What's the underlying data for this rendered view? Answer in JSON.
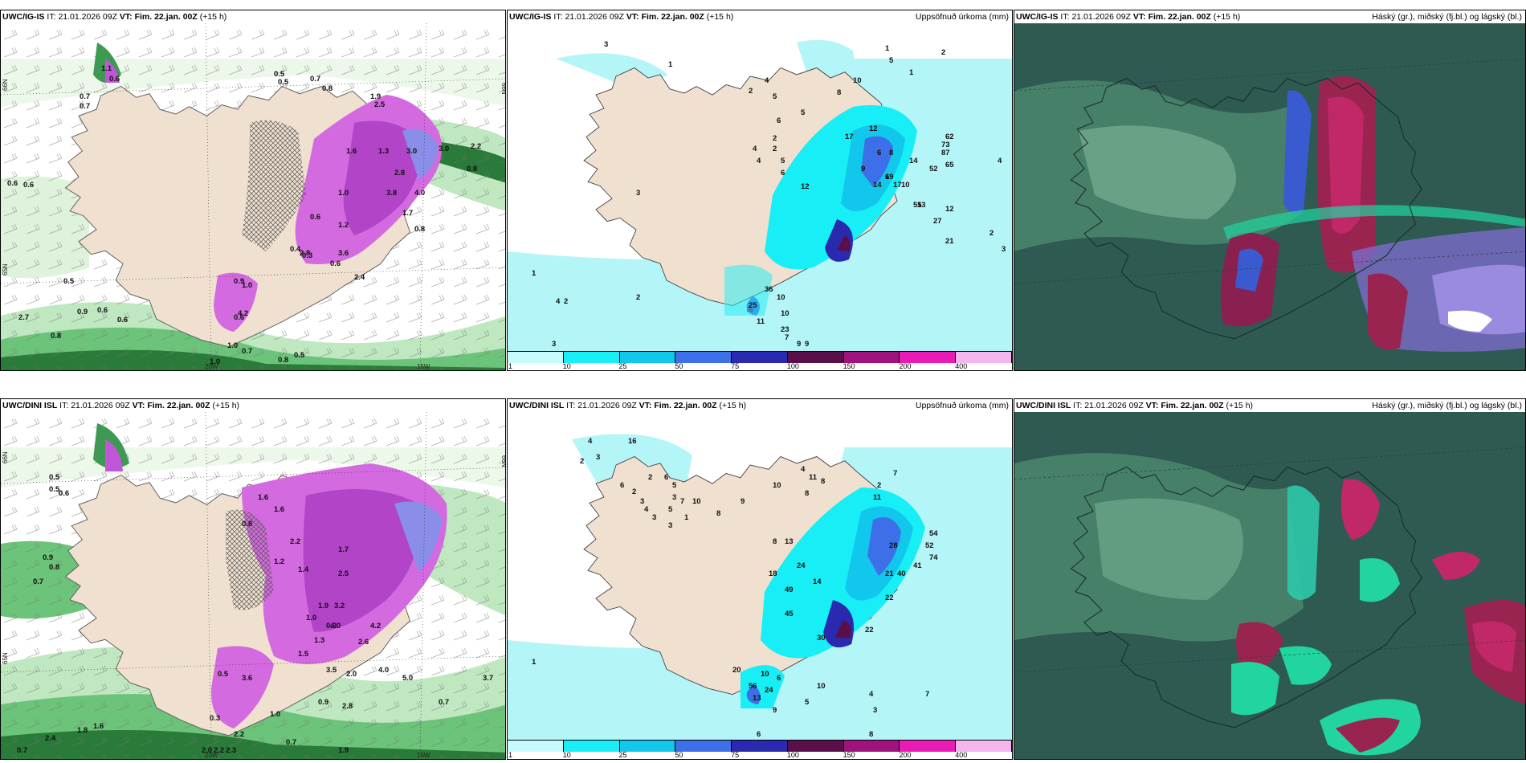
{
  "colors": {
    "land": "#efe0cf",
    "sea_light": "#b4f5f8",
    "precip_cyan": "#00e8f0",
    "precip_blue": "#3f6ef0",
    "precip_purple": "#7a1060",
    "snow_magenta": "#d46ae0",
    "green_light": "#bfe8c0",
    "green_dark": "#2a7a3a",
    "cloud_bg": "#2e5a52"
  },
  "rows": [
    {
      "model": "UWC/IG-IS",
      "init_prefix": "IT:",
      "init_time": "21.01.2026 09Z",
      "valid_prefix": "VT:",
      "valid_time": "Fim. 22.jan. 00Z",
      "lead": "(+15 h)",
      "left_panel": {
        "axis_labels": [
          "66N",
          "65N",
          "20W",
          "15W",
          "19W"
        ],
        "values": [
          "0.7",
          "0.7",
          "0.5",
          "0.6",
          "0.8",
          "0.6",
          "0.6",
          "1.1",
          "0.6",
          "1.9",
          "2.5",
          "1.6",
          "1.3",
          "3.0",
          "2.8",
          "3.8",
          "1.0",
          "0.6",
          "1.2",
          "0.4",
          "0.3",
          "0.9",
          "1.0",
          "0.5",
          "2.7",
          "3.6",
          "2.8",
          "0.6",
          "4.2",
          "0.5",
          "0.7",
          "0.8",
          "1.0",
          "0.7",
          "0.8",
          "0.5",
          "2.4",
          "1.0",
          "0.6",
          "0.9",
          "3.0",
          "0.8",
          "2.2",
          "4.0",
          "1.7",
          "0.8",
          "0.6"
        ]
      },
      "middle_panel": {
        "title": "Uppsöfnuð úrkoma (mm)",
        "values": [
          "3",
          "1",
          "2",
          "4",
          "5",
          "6",
          "2",
          "4",
          "5",
          "3",
          "6",
          "4",
          "2",
          "12",
          "5",
          "10",
          "8",
          "17",
          "12",
          "6",
          "14",
          "9",
          "6",
          "8",
          "10",
          "14",
          "19",
          "17",
          "55",
          "27",
          "13",
          "52",
          "65",
          "87",
          "73",
          "62",
          "21",
          "4",
          "2",
          "3",
          "36",
          "10",
          "25",
          "11",
          "10",
          "23",
          "7",
          "1",
          "4",
          "2",
          "2",
          "3",
          "9",
          "9",
          "12",
          "1",
          "5",
          "1",
          "2"
        ],
        "colorbar": {
          "ticks": [
            "1",
            "10",
            "25",
            "50",
            "75",
            "100",
            "150",
            "200",
            "400"
          ],
          "colors": [
            "#c6fbfd",
            "#17eef5",
            "#12c7ec",
            "#3c6fe8",
            "#2a2ab0",
            "#5a0f4a",
            "#a0127e",
            "#ea1ab5",
            "#f5b6ef"
          ]
        }
      },
      "right_panel": {
        "title": "Háský (gr.), miðský (fj.bl.) og lágský (bl.)"
      }
    },
    {
      "model": "UWC/DINI ISL",
      "init_prefix": "IT:",
      "init_time": "21.01.2026 09Z",
      "valid_prefix": "VT:",
      "valid_time": "Fim. 22.jan. 00Z",
      "lead": "(+15 h)",
      "left_panel": {
        "axis_labels": [
          "66N",
          "65N",
          "20W",
          "15W",
          "19W"
        ],
        "values": [
          "0.5",
          "0.6",
          "0.5",
          "0.9",
          "0.8",
          "0.7",
          "1.6",
          "1.6",
          "0.8",
          "2.2",
          "1.2",
          "1.4",
          "1.7",
          "2.5",
          "3.2",
          "1.9",
          "4.0",
          "1.0",
          "1.3",
          "2.6",
          "4.2",
          "0.3",
          "1.5",
          "3.5",
          "4.0",
          "2.0",
          "5.0",
          "2.8",
          "3.7",
          "0.7",
          "0.9",
          "0.5",
          "3.6",
          "0.3",
          "2.2",
          "1.0",
          "0.7",
          "2.4",
          "1.8",
          "0.7",
          "2.0",
          "2.2",
          "2.3",
          "1.6",
          "1.9"
        ]
      },
      "middle_panel": {
        "title": "Uppsöfnuð úrkoma (mm)",
        "values": [
          "4",
          "3",
          "2",
          "16",
          "1",
          "2",
          "6",
          "2",
          "3",
          "4",
          "3",
          "5",
          "6",
          "5",
          "3",
          "7",
          "10",
          "1",
          "3",
          "8",
          "9",
          "10",
          "11",
          "4",
          "8",
          "8",
          "8",
          "7",
          "2",
          "11",
          "28",
          "41",
          "21",
          "54",
          "52",
          "74",
          "40",
          "22",
          "13",
          "24",
          "14",
          "18",
          "49",
          "45",
          "30",
          "22",
          "20",
          "10",
          "6",
          "24",
          "56",
          "13",
          "9",
          "6",
          "7",
          "8",
          "7",
          "10",
          "4",
          "3",
          "5",
          "6",
          "1",
          "1"
        ],
        "colorbar": {
          "ticks": [
            "1",
            "10",
            "25",
            "50",
            "75",
            "100",
            "150",
            "200",
            "400"
          ],
          "colors": [
            "#c6fbfd",
            "#17eef5",
            "#12c7ec",
            "#3c6fe8",
            "#2a2ab0",
            "#5a0f4a",
            "#a0127e",
            "#ea1ab5",
            "#f5b6ef"
          ]
        }
      },
      "right_panel": {
        "title": "Háský (gr.), miðský (fj.bl.) og lágský (bl.)"
      }
    }
  ]
}
